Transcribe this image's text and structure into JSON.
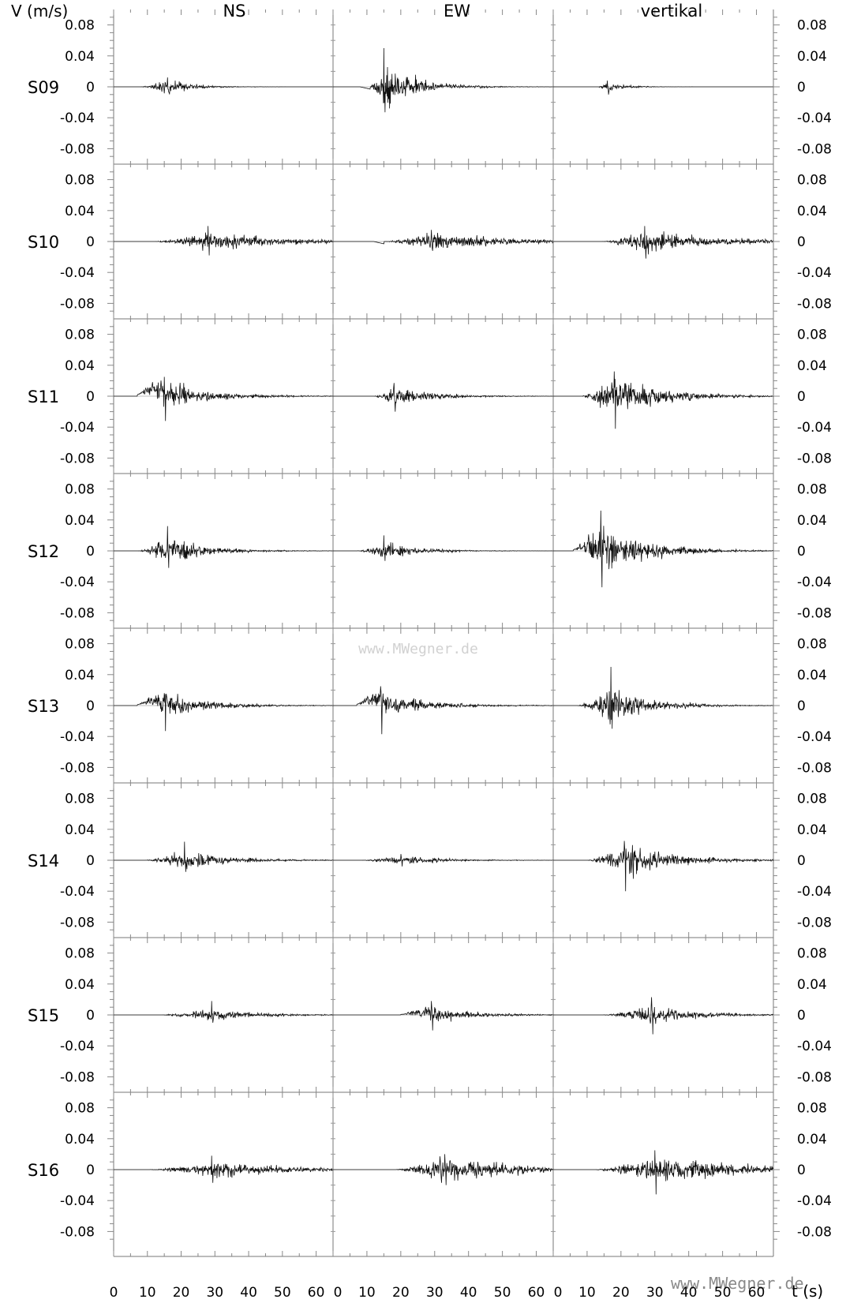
{
  "chart_data": {
    "type": "line",
    "title": "",
    "ylabel": "V (m/s)",
    "xlabel": "t (s)",
    "columns": [
      "NS",
      "EW",
      "vertikal"
    ],
    "stations": [
      "S09",
      "S10",
      "S11",
      "S12",
      "S13",
      "S14",
      "S15",
      "S16"
    ],
    "ylim": [
      -0.1,
      0.1
    ],
    "yticks": [
      0.08,
      0.04,
      0,
      -0.04,
      -0.08
    ],
    "ytick_labels": [
      "0.08",
      "0.04",
      "0",
      "-0.04",
      "-0.08"
    ],
    "xlim": [
      0,
      65
    ],
    "xticks": [
      0,
      10,
      20,
      30,
      40,
      50,
      60
    ],
    "xtick_labels": [
      "0",
      "10",
      "20",
      "30",
      "40",
      "50",
      "60"
    ],
    "grid": false,
    "panels": [
      [
        {
          "onset": 8,
          "peak_t": 16,
          "env_peak": 0.007,
          "pos_peak": 0.012,
          "neg_peak": -0.007,
          "duration": 15,
          "seed": 11
        },
        {
          "onset": 11,
          "peak_t": 15,
          "env_peak": 0.022,
          "pos_peak": 0.05,
          "neg_peak": -0.033,
          "duration": 20,
          "seed": 12,
          "pre_dip": -0.003
        },
        {
          "onset": 13,
          "peak_t": 16,
          "env_peak": 0.004,
          "pos_peak": 0.008,
          "neg_peak": -0.01,
          "duration": 12,
          "seed": 13
        }
      ],
      [
        {
          "onset": 12,
          "peak_t": 28,
          "env_peak": 0.008,
          "pos_peak": 0.02,
          "neg_peak": -0.018,
          "duration": 48,
          "seed": 21
        },
        {
          "onset": 15,
          "peak_t": 29,
          "env_peak": 0.008,
          "pos_peak": 0.015,
          "neg_peak": -0.012,
          "duration": 45,
          "seed": 22,
          "pre_dip": -0.003
        },
        {
          "onset": 14,
          "peak_t": 27,
          "env_peak": 0.01,
          "pos_peak": 0.02,
          "neg_peak": -0.022,
          "duration": 45,
          "seed": 23
        }
      ],
      [
        {
          "onset": 7,
          "peak_t": 15,
          "env_peak": 0.013,
          "pos_peak": 0.025,
          "neg_peak": -0.032,
          "duration": 28,
          "seed": 31,
          "ramp": 0.01
        },
        {
          "onset": 12,
          "peak_t": 18,
          "env_peak": 0.008,
          "pos_peak": 0.017,
          "neg_peak": -0.02,
          "duration": 25,
          "seed": 32
        },
        {
          "onset": 8,
          "peak_t": 18,
          "env_peak": 0.017,
          "pos_peak": 0.032,
          "neg_peak": -0.042,
          "duration": 30,
          "seed": 33
        }
      ],
      [
        {
          "onset": 7,
          "peak_t": 16,
          "env_peak": 0.011,
          "pos_peak": 0.032,
          "neg_peak": -0.022,
          "duration": 25,
          "seed": 41
        },
        {
          "onset": 7,
          "peak_t": 15,
          "env_peak": 0.008,
          "pos_peak": 0.02,
          "neg_peak": -0.013,
          "duration": 22,
          "seed": 42
        },
        {
          "onset": 6,
          "peak_t": 14,
          "env_peak": 0.022,
          "pos_peak": 0.052,
          "neg_peak": -0.047,
          "duration": 28,
          "seed": 43,
          "ramp": 0.008
        }
      ],
      [
        {
          "onset": 7,
          "peak_t": 15,
          "env_peak": 0.01,
          "pos_peak": 0.016,
          "neg_peak": -0.033,
          "duration": 28,
          "seed": 51,
          "ramp": 0.006
        },
        {
          "onset": 7,
          "peak_t": 14,
          "env_peak": 0.012,
          "pos_peak": 0.025,
          "neg_peak": -0.037,
          "duration": 28,
          "seed": 52,
          "ramp": 0.008
        },
        {
          "onset": 7,
          "peak_t": 17,
          "env_peak": 0.016,
          "pos_peak": 0.05,
          "neg_peak": -0.03,
          "duration": 25,
          "seed": 53
        }
      ],
      [
        {
          "onset": 9,
          "peak_t": 21,
          "env_peak": 0.008,
          "pos_peak": 0.024,
          "neg_peak": -0.015,
          "duration": 30,
          "seed": 61
        },
        {
          "onset": 8,
          "peak_t": 20,
          "env_peak": 0.004,
          "pos_peak": 0.008,
          "neg_peak": -0.008,
          "duration": 28,
          "seed": 62
        },
        {
          "onset": 10,
          "peak_t": 21,
          "env_peak": 0.013,
          "pos_peak": 0.025,
          "neg_peak": -0.04,
          "duration": 35,
          "seed": 63
        }
      ],
      [
        {
          "onset": 13,
          "peak_t": 29,
          "env_peak": 0.005,
          "pos_peak": 0.018,
          "neg_peak": -0.01,
          "duration": 30,
          "seed": 71
        },
        {
          "onset": 20,
          "peak_t": 29,
          "env_peak": 0.008,
          "pos_peak": 0.018,
          "neg_peak": -0.02,
          "duration": 25,
          "seed": 72,
          "ramp": 0.003
        },
        {
          "onset": 14,
          "peak_t": 29,
          "env_peak": 0.008,
          "pos_peak": 0.023,
          "neg_peak": -0.025,
          "duration": 30,
          "seed": 73
        }
      ],
      [
        {
          "onset": 10,
          "peak_t": 29,
          "env_peak": 0.007,
          "pos_peak": 0.018,
          "neg_peak": -0.017,
          "duration": 55,
          "seed": 81
        },
        {
          "onset": 18,
          "peak_t": 33,
          "env_peak": 0.011,
          "pos_peak": 0.02,
          "neg_peak": -0.02,
          "duration": 50,
          "seed": 82
        },
        {
          "onset": 12,
          "peak_t": 30,
          "env_peak": 0.012,
          "pos_peak": 0.025,
          "neg_peak": -0.032,
          "duration": 55,
          "seed": 83
        }
      ]
    ]
  },
  "watermark": {
    "center": "www.MWegner.de",
    "bottom": "www.MWegner.de"
  }
}
